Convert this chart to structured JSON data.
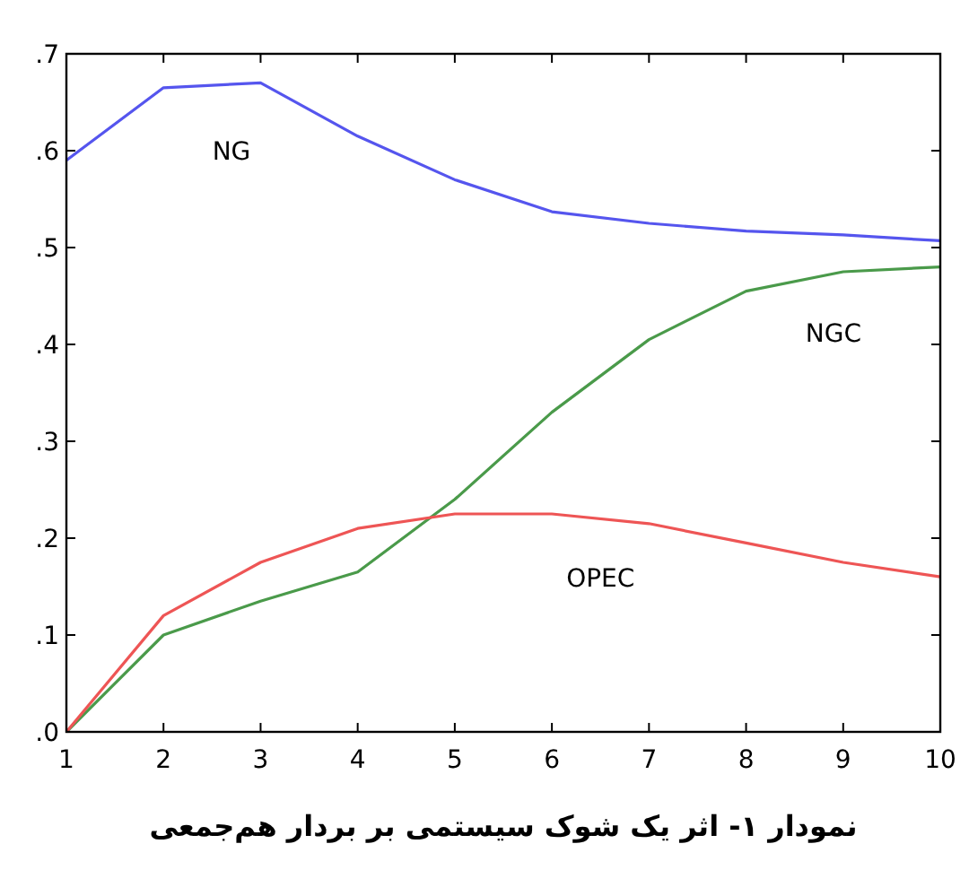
{
  "chart_data": {
    "type": "line",
    "title": "نمودار ۱- اثر یک شوک سیستمی بر بردار هم‌جمعی",
    "x": [
      1,
      2,
      3,
      4,
      5,
      6,
      7,
      8,
      9,
      10
    ],
    "series": [
      {
        "name": "NG",
        "color": "#5555ee",
        "values": [
          0.59,
          0.665,
          0.67,
          0.615,
          0.57,
          0.537,
          0.525,
          0.517,
          0.513,
          0.507
        ]
      },
      {
        "name": "NGC",
        "color": "#4a9a4a",
        "values": [
          0,
          0.1,
          0.135,
          0.165,
          0.24,
          0.33,
          0.405,
          0.455,
          0.475,
          0.48
        ]
      },
      {
        "name": "OPEC",
        "color": "#ee5555",
        "values": [
          0,
          0.12,
          0.175,
          0.21,
          0.225,
          0.225,
          0.215,
          0.195,
          0.175,
          0.16
        ]
      }
    ],
    "xlim": [
      1,
      10
    ],
    "xticks": [
      1,
      2,
      3,
      4,
      5,
      6,
      7,
      8,
      9,
      10
    ],
    "ylim": [
      0,
      0.7
    ],
    "yticks": [
      {
        "value": 0,
        "label": ".0"
      },
      {
        "value": 0.1,
        "label": ".1"
      },
      {
        "value": 0.2,
        "label": ".2"
      },
      {
        "value": 0.3,
        "label": ".3"
      },
      {
        "value": 0.4,
        "label": ".4"
      },
      {
        "value": 0.5,
        "label": ".5"
      },
      {
        "value": 0.6,
        "label": ".6"
      },
      {
        "value": 0.7,
        "label": ".7"
      }
    ],
    "grid": false,
    "marker": "none",
    "line_style": "solid"
  }
}
